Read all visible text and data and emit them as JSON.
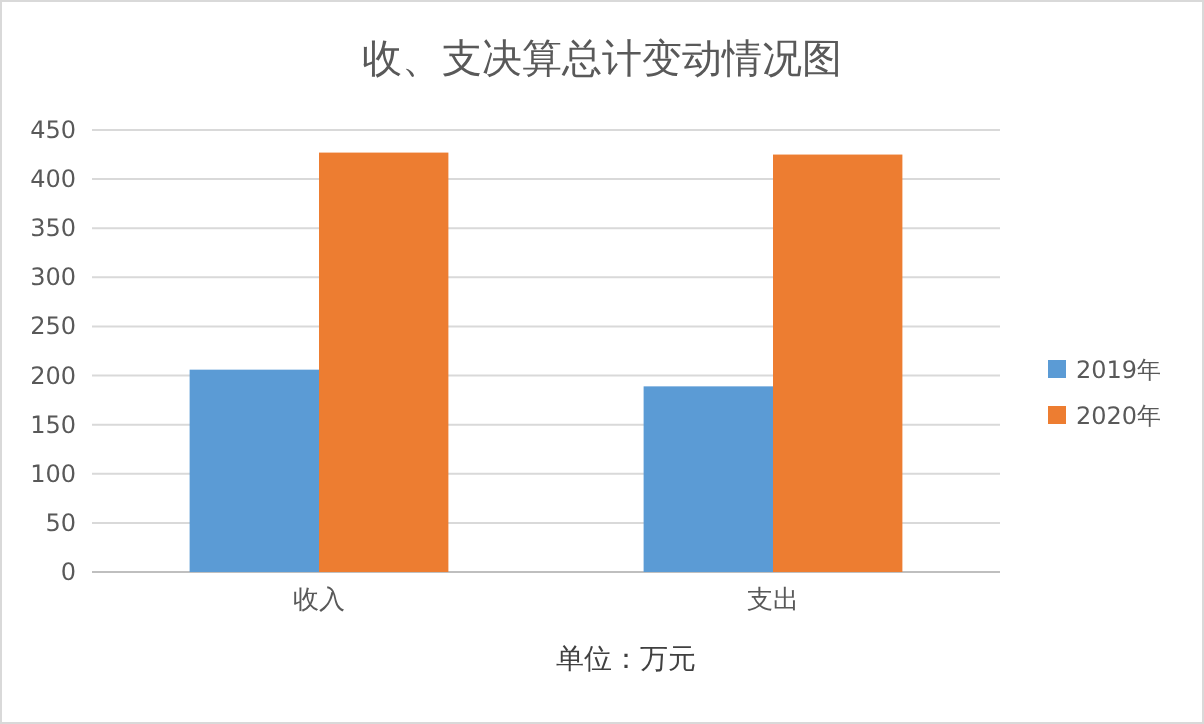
{
  "chart_data": {
    "type": "bar",
    "title": "收、支决算总计变动情况图",
    "categories": [
      "收入",
      "支出"
    ],
    "series": [
      {
        "name": "2019年",
        "color": "#5b9bd5",
        "values": [
          206,
          189
        ]
      },
      {
        "name": "2020年",
        "color": "#ed7d31",
        "values": [
          427,
          425
        ]
      }
    ],
    "ylim": [
      0,
      450
    ],
    "yticks": [
      0,
      50,
      100,
      150,
      200,
      250,
      300,
      350,
      400,
      450
    ],
    "grid": "y",
    "legend": "right",
    "annotations": [
      "单位：万元"
    ]
  }
}
